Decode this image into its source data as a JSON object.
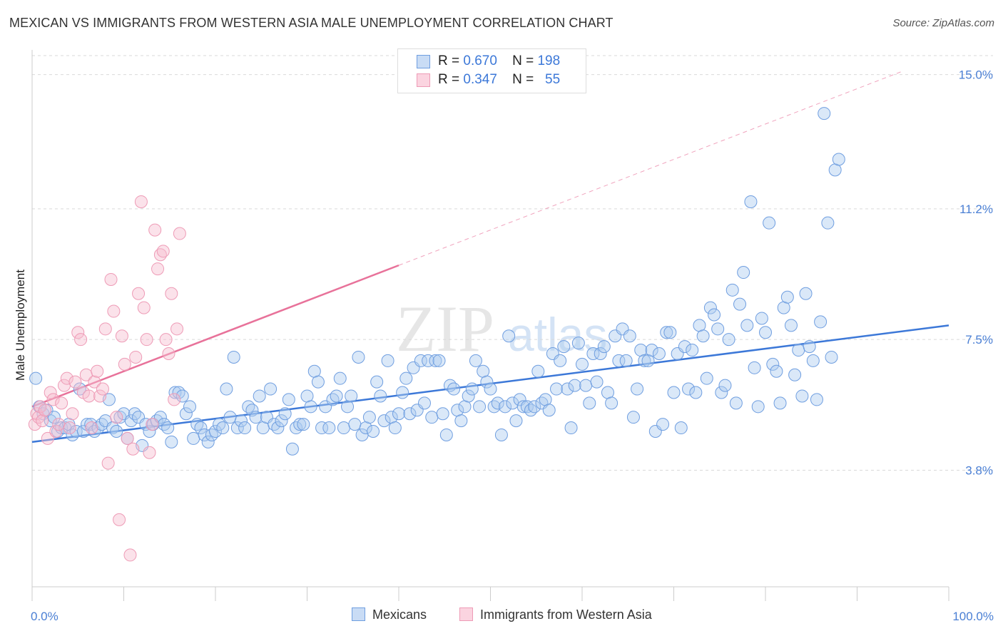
{
  "header": {
    "title": "MEXICAN VS IMMIGRANTS FROM WESTERN ASIA MALE UNEMPLOYMENT CORRELATION CHART",
    "source": "Source: ZipAtlas.com"
  },
  "watermark": {
    "zip": "ZIP",
    "atlas": "atlas"
  },
  "legend": {
    "series1": {
      "r_label": "R =",
      "r_value": "0.670",
      "n_label": "N =",
      "n_value": "198"
    },
    "series2": {
      "r_label": "R =",
      "r_value": "0.347",
      "n_label": "N =",
      "n_value": "55"
    }
  },
  "colors": {
    "blue": "#3c78d8",
    "blue_fill": "#aecbf0",
    "pink": "#e8729a",
    "pink_fill": "#f7bed0",
    "grid": "#d9d9d9"
  },
  "chart_data": {
    "type": "scatter",
    "title": "MEXICAN VS IMMIGRANTS FROM WESTERN ASIA MALE UNEMPLOYMENT CORRELATION CHART",
    "xlabel": "",
    "ylabel": "Male Unemployment",
    "xlim": [
      0,
      100
    ],
    "ylim": [
      0.5,
      15.9
    ],
    "x_tick_labels": [
      "0.0%",
      "100.0%"
    ],
    "y_ticks": [
      3.8,
      7.5,
      11.2,
      15.0
    ],
    "y_tick_labels": [
      "3.8%",
      "7.5%",
      "11.2%",
      "15.0%"
    ],
    "grid": "horizontal dashed",
    "legend_position": "top-center and bottom",
    "series": [
      {
        "name": "Mexicans",
        "color": "#3c78d8",
        "r": 0.67,
        "n": 198,
        "trend": {
          "x": [
            0,
            100
          ],
          "y": [
            4.6,
            7.9
          ]
        },
        "points": [
          [
            0.4,
            6.4
          ],
          [
            0.8,
            5.6
          ],
          [
            1.2,
            5.4
          ],
          [
            1.6,
            5.5
          ],
          [
            2.0,
            5.2
          ],
          [
            2.4,
            5.3
          ],
          [
            2.8,
            4.9
          ],
          [
            3.2,
            5.0
          ],
          [
            3.6,
            5.0
          ],
          [
            4.0,
            5.1
          ],
          [
            4.4,
            4.8
          ],
          [
            4.8,
            4.9
          ],
          [
            5.2,
            6.1
          ],
          [
            5.6,
            4.9
          ],
          [
            6.0,
            5.1
          ],
          [
            6.4,
            5.1
          ],
          [
            6.8,
            4.9
          ],
          [
            7.2,
            5.0
          ],
          [
            7.6,
            5.1
          ],
          [
            8.0,
            5.2
          ],
          [
            8.4,
            5.8
          ],
          [
            8.8,
            5.0
          ],
          [
            9.2,
            4.9
          ],
          [
            9.6,
            5.3
          ],
          [
            10.0,
            5.4
          ],
          [
            10.4,
            4.7
          ],
          [
            10.8,
            5.2
          ],
          [
            11.2,
            5.4
          ],
          [
            11.6,
            5.3
          ],
          [
            12.0,
            4.5
          ],
          [
            12.4,
            5.1
          ],
          [
            12.8,
            4.9
          ],
          [
            13.2,
            5.1
          ],
          [
            13.6,
            5.2
          ],
          [
            14.0,
            5.3
          ],
          [
            14.4,
            5.1
          ],
          [
            14.8,
            5.0
          ],
          [
            15.2,
            4.6
          ],
          [
            15.6,
            6.0
          ],
          [
            16.0,
            6.0
          ],
          [
            16.4,
            5.9
          ],
          [
            16.8,
            5.4
          ],
          [
            17.2,
            5.6
          ],
          [
            17.6,
            4.7
          ],
          [
            18.0,
            5.1
          ],
          [
            18.4,
            5.0
          ],
          [
            18.8,
            4.8
          ],
          [
            19.2,
            4.6
          ],
          [
            19.6,
            4.8
          ],
          [
            20.0,
            4.9
          ],
          [
            20.4,
            5.1
          ],
          [
            20.8,
            5.0
          ],
          [
            21.2,
            6.1
          ],
          [
            21.6,
            5.3
          ],
          [
            22.0,
            7.0
          ],
          [
            22.4,
            5.0
          ],
          [
            22.8,
            5.2
          ],
          [
            23.2,
            5.0
          ],
          [
            23.6,
            5.6
          ],
          [
            24.0,
            5.5
          ],
          [
            24.4,
            5.3
          ],
          [
            24.8,
            5.9
          ],
          [
            25.2,
            5.0
          ],
          [
            25.6,
            5.3
          ],
          [
            26.0,
            6.1
          ],
          [
            26.4,
            5.1
          ],
          [
            26.8,
            5.0
          ],
          [
            27.2,
            5.2
          ],
          [
            27.6,
            5.4
          ],
          [
            28.0,
            5.8
          ],
          [
            28.4,
            4.4
          ],
          [
            28.8,
            5.0
          ],
          [
            29.2,
            5.1
          ],
          [
            29.6,
            5.1
          ],
          [
            30.0,
            5.9
          ],
          [
            30.4,
            5.6
          ],
          [
            30.8,
            6.6
          ],
          [
            31.2,
            6.3
          ],
          [
            31.6,
            5.0
          ],
          [
            32.0,
            5.6
          ],
          [
            32.4,
            5.0
          ],
          [
            32.8,
            5.8
          ],
          [
            33.2,
            5.9
          ],
          [
            33.6,
            6.4
          ],
          [
            34.0,
            5.0
          ],
          [
            34.4,
            5.6
          ],
          [
            34.8,
            5.9
          ],
          [
            35.2,
            5.1
          ],
          [
            35.6,
            7.0
          ],
          [
            36.0,
            4.8
          ],
          [
            36.4,
            5.0
          ],
          [
            36.8,
            5.3
          ],
          [
            37.2,
            4.9
          ],
          [
            37.6,
            6.3
          ],
          [
            38.0,
            5.9
          ],
          [
            38.4,
            5.2
          ],
          [
            38.8,
            6.9
          ],
          [
            39.2,
            5.3
          ],
          [
            39.6,
            5.0
          ],
          [
            40.0,
            5.4
          ],
          [
            40.4,
            6.0
          ],
          [
            40.8,
            6.4
          ],
          [
            41.2,
            5.4
          ],
          [
            41.6,
            6.7
          ],
          [
            42.0,
            5.5
          ],
          [
            42.4,
            6.9
          ],
          [
            42.8,
            5.7
          ],
          [
            43.2,
            6.9
          ],
          [
            43.6,
            5.3
          ],
          [
            44.0,
            6.9
          ],
          [
            44.4,
            6.9
          ],
          [
            44.8,
            5.4
          ],
          [
            45.2,
            4.8
          ],
          [
            45.6,
            6.2
          ],
          [
            46.0,
            6.1
          ],
          [
            46.4,
            5.5
          ],
          [
            46.8,
            5.2
          ],
          [
            47.2,
            5.6
          ],
          [
            47.6,
            5.9
          ],
          [
            48.0,
            6.1
          ],
          [
            48.4,
            6.9
          ],
          [
            48.8,
            5.6
          ],
          [
            49.2,
            6.6
          ],
          [
            49.6,
            6.3
          ],
          [
            50.0,
            6.1
          ],
          [
            50.4,
            5.6
          ],
          [
            50.8,
            5.7
          ],
          [
            51.2,
            4.8
          ],
          [
            51.6,
            5.6
          ],
          [
            52.0,
            7.6
          ],
          [
            52.4,
            5.7
          ],
          [
            52.8,
            5.2
          ],
          [
            53.2,
            5.8
          ],
          [
            53.6,
            5.6
          ],
          [
            54.0,
            5.6
          ],
          [
            54.4,
            5.5
          ],
          [
            54.8,
            5.6
          ],
          [
            55.2,
            6.6
          ],
          [
            55.6,
            5.7
          ],
          [
            56.0,
            5.8
          ],
          [
            56.4,
            5.5
          ],
          [
            56.8,
            7.1
          ],
          [
            57.2,
            6.1
          ],
          [
            57.6,
            6.9
          ],
          [
            58.0,
            7.3
          ],
          [
            58.4,
            6.1
          ],
          [
            58.8,
            5.0
          ],
          [
            59.2,
            6.2
          ],
          [
            59.6,
            7.4
          ],
          [
            60.0,
            6.8
          ],
          [
            60.4,
            6.2
          ],
          [
            60.8,
            5.7
          ],
          [
            61.2,
            7.1
          ],
          [
            61.6,
            6.3
          ],
          [
            62.0,
            7.1
          ],
          [
            62.4,
            7.3
          ],
          [
            62.8,
            6.0
          ],
          [
            63.2,
            5.7
          ],
          [
            63.6,
            7.6
          ],
          [
            64.0,
            6.9
          ],
          [
            64.4,
            7.8
          ],
          [
            64.8,
            6.9
          ],
          [
            65.2,
            7.6
          ],
          [
            65.6,
            5.3
          ],
          [
            66.0,
            6.1
          ],
          [
            66.4,
            7.2
          ],
          [
            66.8,
            6.9
          ],
          [
            67.2,
            6.9
          ],
          [
            67.6,
            7.2
          ],
          [
            68.0,
            4.9
          ],
          [
            68.4,
            7.1
          ],
          [
            68.8,
            5.1
          ],
          [
            69.2,
            7.7
          ],
          [
            69.6,
            7.7
          ],
          [
            70.0,
            6.0
          ],
          [
            70.4,
            7.1
          ],
          [
            70.8,
            5.0
          ],
          [
            71.2,
            7.3
          ],
          [
            71.6,
            6.1
          ],
          [
            72.0,
            7.2
          ],
          [
            72.4,
            6.0
          ],
          [
            72.8,
            7.9
          ],
          [
            73.2,
            7.6
          ],
          [
            73.6,
            6.4
          ],
          [
            74.0,
            8.4
          ],
          [
            74.4,
            8.2
          ],
          [
            74.8,
            7.8
          ],
          [
            75.2,
            6.0
          ],
          [
            75.6,
            6.2
          ],
          [
            76.0,
            7.5
          ],
          [
            76.4,
            8.9
          ],
          [
            76.8,
            5.7
          ],
          [
            77.2,
            8.5
          ],
          [
            77.6,
            9.4
          ],
          [
            78.0,
            7.9
          ],
          [
            78.4,
            11.4
          ],
          [
            78.8,
            6.7
          ],
          [
            79.2,
            5.6
          ],
          [
            79.6,
            8.1
          ],
          [
            80.0,
            7.7
          ],
          [
            80.4,
            10.8
          ],
          [
            80.8,
            6.8
          ],
          [
            81.2,
            6.6
          ],
          [
            81.6,
            5.7
          ],
          [
            82.0,
            8.4
          ],
          [
            82.4,
            8.7
          ],
          [
            82.8,
            7.9
          ],
          [
            83.2,
            6.5
          ],
          [
            83.6,
            7.2
          ],
          [
            84.0,
            5.9
          ],
          [
            84.4,
            8.8
          ],
          [
            84.8,
            7.3
          ],
          [
            85.2,
            6.9
          ],
          [
            85.6,
            5.8
          ],
          [
            86.0,
            8.0
          ],
          [
            86.4,
            13.9
          ],
          [
            86.8,
            10.8
          ],
          [
            87.2,
            7.0
          ],
          [
            87.6,
            12.3
          ],
          [
            88.0,
            12.6
          ]
        ]
      },
      {
        "name": "Immigrants from Western Asia",
        "color": "#e8729a",
        "r": 0.347,
        "n": 55,
        "trend": {
          "x": [
            0,
            40
          ],
          "y": [
            5.6,
            9.6
          ]
        },
        "trend_ext": {
          "x": [
            40,
            95
          ],
          "y": [
            9.6,
            15.1
          ]
        },
        "points": [
          [
            0.3,
            5.1
          ],
          [
            0.5,
            5.4
          ],
          [
            0.7,
            5.3
          ],
          [
            0.9,
            5.6
          ],
          [
            1.1,
            5.2
          ],
          [
            1.4,
            5.5
          ],
          [
            1.7,
            4.7
          ],
          [
            2.0,
            6.0
          ],
          [
            2.3,
            5.8
          ],
          [
            2.6,
            4.9
          ],
          [
            2.9,
            5.1
          ],
          [
            3.2,
            5.7
          ],
          [
            3.5,
            6.2
          ],
          [
            3.8,
            6.4
          ],
          [
            4.1,
            5.0
          ],
          [
            4.4,
            5.4
          ],
          [
            4.7,
            6.3
          ],
          [
            5.0,
            7.7
          ],
          [
            5.3,
            7.5
          ],
          [
            5.6,
            6.0
          ],
          [
            5.9,
            6.5
          ],
          [
            6.2,
            5.9
          ],
          [
            6.5,
            5.0
          ],
          [
            6.8,
            6.3
          ],
          [
            7.1,
            6.6
          ],
          [
            7.4,
            5.9
          ],
          [
            7.7,
            6.1
          ],
          [
            8.0,
            7.8
          ],
          [
            8.3,
            4.0
          ],
          [
            8.6,
            9.2
          ],
          [
            8.9,
            8.3
          ],
          [
            9.2,
            5.3
          ],
          [
            9.5,
            2.4
          ],
          [
            9.8,
            7.6
          ],
          [
            10.1,
            6.8
          ],
          [
            10.4,
            4.7
          ],
          [
            10.7,
            1.4
          ],
          [
            11.0,
            4.4
          ],
          [
            11.3,
            7.0
          ],
          [
            11.6,
            8.8
          ],
          [
            11.9,
            11.4
          ],
          [
            12.2,
            8.4
          ],
          [
            12.5,
            7.5
          ],
          [
            12.8,
            4.3
          ],
          [
            13.1,
            5.1
          ],
          [
            13.4,
            10.6
          ],
          [
            13.7,
            9.5
          ],
          [
            14.0,
            9.9
          ],
          [
            14.3,
            10.0
          ],
          [
            14.6,
            7.5
          ],
          [
            14.9,
            7.1
          ],
          [
            15.2,
            8.8
          ],
          [
            15.5,
            5.8
          ],
          [
            15.8,
            7.8
          ],
          [
            16.1,
            10.5
          ]
        ]
      }
    ]
  }
}
